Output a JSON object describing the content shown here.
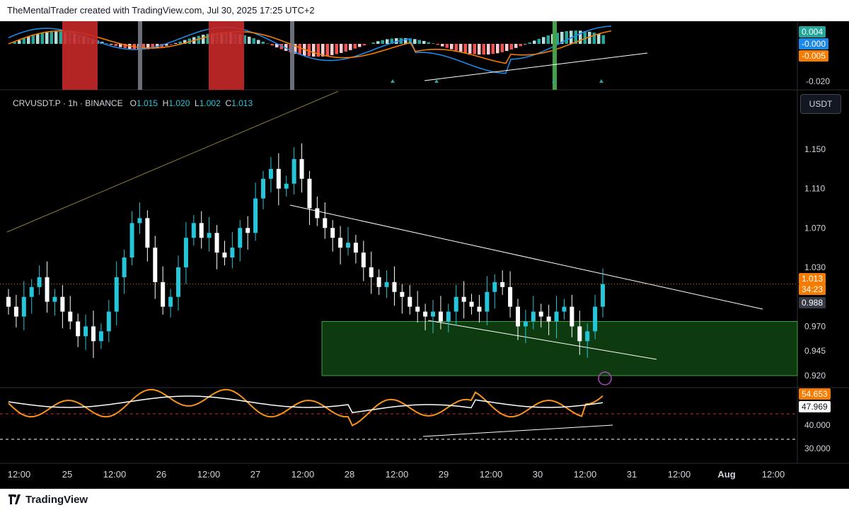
{
  "header": {
    "credit": "TheMentalTrader created with TradingView.com, Jul 30, 2025 17:25 UTC+2"
  },
  "legend": {
    "symbol": "CRVUSDT.P · 1h · BINANCE",
    "open_label": "O",
    "open": "1.015",
    "high_label": "H",
    "high": "1.020",
    "low_label": "L",
    "low": "1.002",
    "close_label": "C",
    "close": "1.013"
  },
  "currency_button": "USDT",
  "footer": {
    "brand": "TradingView"
  },
  "colors": {
    "up": "#26c6da",
    "down": "#ffffff",
    "zone": "#0d3b0f",
    "rsi": "#f7931a",
    "rsi_ma": "#ffffff",
    "macd": "#1e88e5",
    "signal": "#f57c00"
  },
  "macd_badges": {
    "hist": "0.004",
    "macd": "-0.000",
    "signal": "-0.005",
    "scale_low": "-0.020"
  },
  "price_badges": {
    "last": "1.013",
    "countdown": "34:23",
    "marker": "0.988"
  },
  "rsi_badges": {
    "rsi": "54.653",
    "ma": "47.969"
  },
  "chart_data": {
    "type": "candlestick",
    "symbol": "CRVUSDT.P",
    "interval": "1h",
    "exchange": "BINANCE",
    "price_axis_ticks": [
      1.15,
      1.11,
      1.07,
      1.03,
      0.97,
      0.945,
      0.92
    ],
    "price_axis_labels": [
      "1.150",
      "1.110",
      "1.070",
      "1.030",
      "0.970",
      "0.945",
      "0.920"
    ],
    "x_axis_labels": [
      "12:00",
      "25",
      "12:00",
      "26",
      "12:00",
      "27",
      "12:00",
      "28",
      "12:00",
      "29",
      "12:00",
      "30",
      "12:00",
      "31",
      "12:00",
      "Aug",
      "12:00"
    ],
    "close_path_approx": [
      0.99,
      0.98,
      1.0,
      1.01,
      1.02,
      0.995,
      1.0,
      0.985,
      0.975,
      0.96,
      0.97,
      0.955,
      0.965,
      0.985,
      1.02,
      1.04,
      1.075,
      1.08,
      1.05,
      1.015,
      0.99,
      1.0,
      1.03,
      1.06,
      1.075,
      1.06,
      1.065,
      1.045,
      1.04,
      1.05,
      1.07,
      1.065,
      1.1,
      1.12,
      1.13,
      1.11,
      1.115,
      1.14,
      1.12,
      1.09,
      1.08,
      1.07,
      1.06,
      1.05,
      1.055,
      1.045,
      1.03,
      1.02,
      1.01,
      1.015,
      1.005,
      1.0,
      0.99,
      0.985,
      0.98,
      0.985,
      0.975,
      0.985,
      1.0,
      0.995,
      0.99,
      0.985,
      1.005,
      1.015,
      1.01,
      0.99,
      0.97,
      0.975,
      0.985,
      0.98,
      0.975,
      0.985,
      0.99,
      0.97,
      0.955,
      0.965,
      0.99,
      1.013
    ],
    "zone": {
      "top": 0.975,
      "bottom": 0.92,
      "label": ""
    },
    "rsi": {
      "levels": [
        40.0,
        30.0
      ],
      "level_labels": [
        "40.000",
        "30.000"
      ],
      "value": 54.653,
      "ma": 47.969
    },
    "macd": {
      "hist": 0.004,
      "macd": -0.0,
      "signal": -0.005
    }
  }
}
